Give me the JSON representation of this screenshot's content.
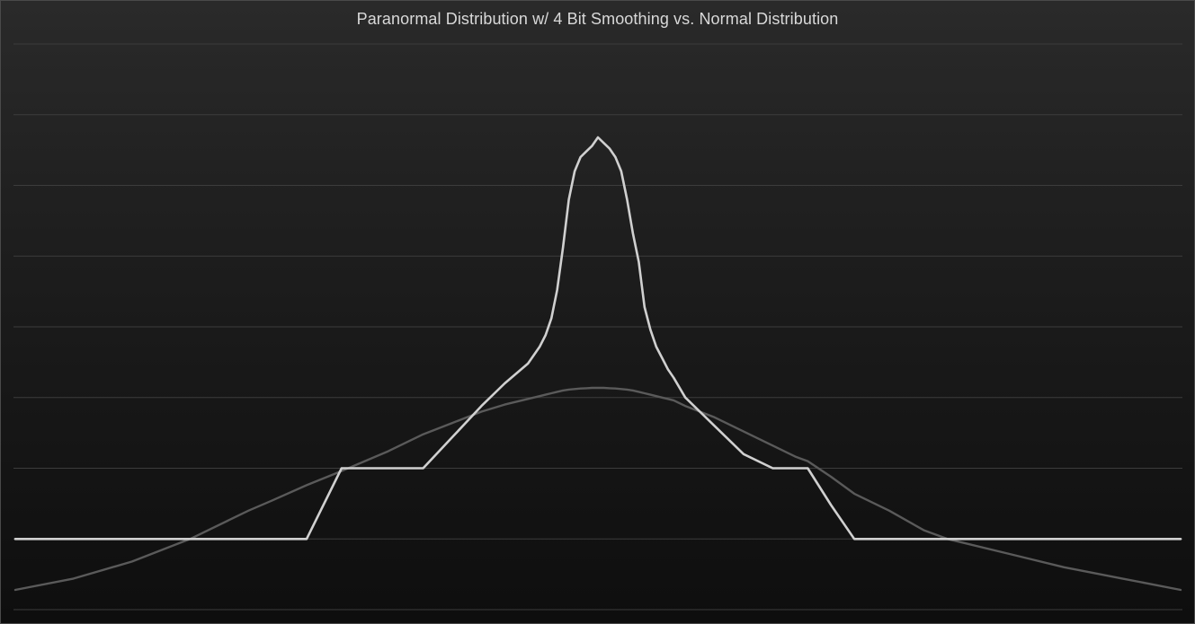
{
  "chart_data": {
    "type": "line",
    "title": "Paranormal Distribution w/ 4 Bit Smoothing vs. Normal Distribution",
    "xlabel": "",
    "ylabel": "",
    "xlim": [
      0,
      1
    ],
    "ylim": [
      -0.25,
      1.75
    ],
    "grid": true,
    "legend": "none",
    "x": [
      0.0,
      0.05,
      0.1,
      0.15,
      0.2,
      0.22,
      0.25,
      0.28,
      0.3,
      0.32,
      0.35,
      0.375,
      0.4,
      0.42,
      0.44,
      0.45,
      0.455,
      0.46,
      0.465,
      0.47,
      0.475,
      0.48,
      0.485,
      0.49,
      0.495,
      0.5,
      0.505,
      0.51,
      0.515,
      0.52,
      0.525,
      0.53,
      0.535,
      0.54,
      0.545,
      0.55,
      0.555,
      0.56,
      0.565,
      0.575,
      0.6,
      0.625,
      0.65,
      0.67,
      0.68,
      0.7,
      0.72,
      0.75,
      0.78,
      0.8,
      0.85,
      0.9,
      0.95,
      1.0
    ],
    "series": [
      {
        "color": "#d0d0d0",
        "values": [
          0.0,
          0.0,
          0.0,
          0.0,
          0.0,
          0.0,
          0.0,
          0.25,
          0.25,
          0.25,
          0.25,
          0.36,
          0.47,
          0.55,
          0.62,
          0.68,
          0.72,
          0.78,
          0.88,
          1.03,
          1.2,
          1.3,
          1.35,
          1.37,
          1.39,
          1.42,
          1.4,
          1.38,
          1.35,
          1.3,
          1.2,
          1.08,
          0.98,
          0.82,
          0.74,
          0.68,
          0.64,
          0.6,
          0.57,
          0.5,
          0.4,
          0.3,
          0.25,
          0.25,
          0.25,
          0.12,
          0.0,
          0.0,
          0.0,
          0.0,
          0.0,
          0.0,
          0.0,
          0.0
        ]
      },
      {
        "color": "#5a5a5a",
        "values": [
          -0.18,
          -0.14,
          -0.08,
          0.0,
          0.1,
          0.135,
          0.19,
          0.24,
          0.275,
          0.31,
          0.37,
          0.41,
          0.45,
          0.475,
          0.495,
          0.505,
          0.51,
          0.515,
          0.52,
          0.525,
          0.528,
          0.53,
          0.532,
          0.533,
          0.534,
          0.534,
          0.534,
          0.533,
          0.532,
          0.53,
          0.528,
          0.525,
          0.52,
          0.515,
          0.51,
          0.505,
          0.5,
          0.495,
          0.49,
          0.47,
          0.43,
          0.38,
          0.33,
          0.29,
          0.275,
          0.22,
          0.16,
          0.1,
          0.03,
          0.0,
          -0.05,
          -0.1,
          -0.14,
          -0.18
        ]
      }
    ]
  }
}
